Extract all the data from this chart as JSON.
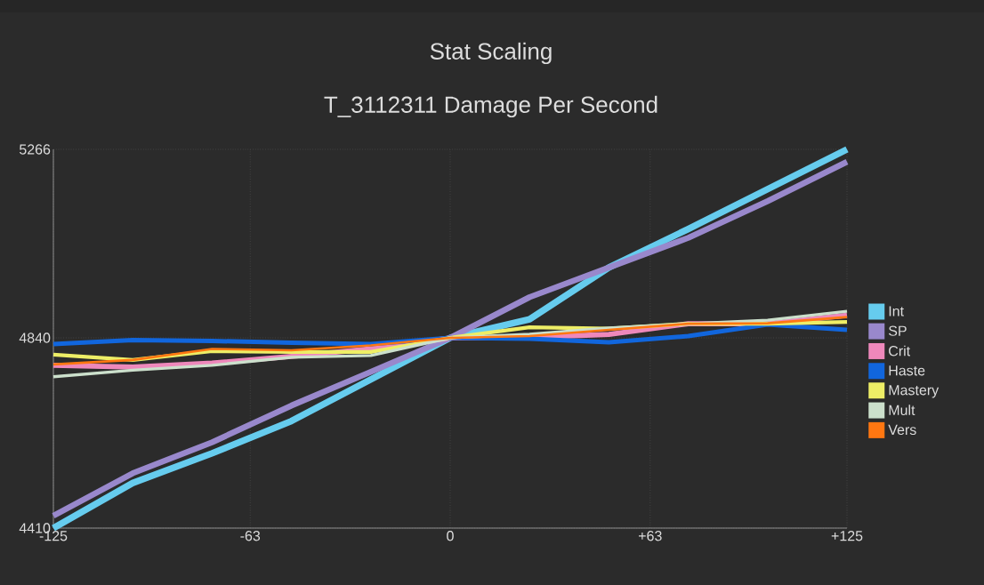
{
  "chart_data": {
    "type": "line",
    "title": "Stat Scaling",
    "subtitle": "T_3112311 Damage Per Second",
    "x": [
      -125,
      -100,
      -75,
      -50,
      -25,
      0,
      25,
      50,
      75,
      100,
      125
    ],
    "xlim": [
      -125,
      125
    ],
    "ylim": [
      4410,
      5266
    ],
    "xticks": [
      -125,
      -63,
      0,
      {
        "value": 63,
        "label": "+63"
      },
      {
        "value": 125,
        "label": "+125"
      }
    ],
    "yticks": [
      4410,
      4840,
      5266
    ],
    "grid": true,
    "legend": "right",
    "series": [
      {
        "name": "Int",
        "color": "#66ccee",
        "values": [
          4410,
          4512,
          4579,
          4652,
          4746,
          4840,
          4882,
          4999,
          5086,
          5176,
          5266
        ]
      },
      {
        "name": "SP",
        "color": "#9988cc",
        "values": [
          4438,
          4534,
          4604,
          4687,
          4763,
          4840,
          4932,
          4999,
          5066,
          5149,
          5238
        ]
      },
      {
        "name": "Crit",
        "color": "#ee88bb",
        "values": [
          4778,
          4774,
          4783,
          4798,
          4815,
          4840,
          4841,
          4848,
          4872,
          4872,
          4891
        ]
      },
      {
        "name": "Haste",
        "color": "#1166dd",
        "values": [
          4826,
          4835,
          4833,
          4829,
          4826,
          4840,
          4838,
          4830,
          4844,
          4870,
          4858
        ]
      },
      {
        "name": "Mastery",
        "color": "#eeee66",
        "values": [
          4802,
          4790,
          4810,
          4808,
          4808,
          4840,
          4864,
          4861,
          4872,
          4872,
          4876
        ]
      },
      {
        "name": "Mult",
        "color": "#cce0cc",
        "values": [
          4752,
          4767,
          4778,
          4796,
          4800,
          4840,
          4848,
          4862,
          4872,
          4880,
          4900
        ]
      },
      {
        "name": "Vers",
        "color": "#ff7711",
        "values": [
          4780,
          4790,
          4815,
          4812,
          4823,
          4840,
          4844,
          4858,
          4872,
          4873,
          4887
        ]
      }
    ]
  }
}
